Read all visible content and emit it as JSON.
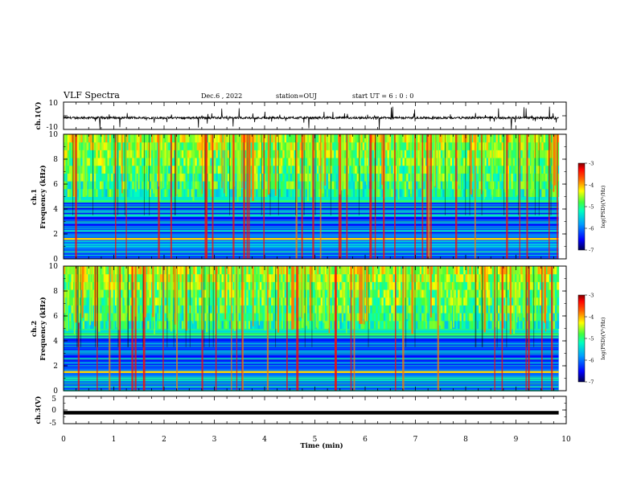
{
  "header": {
    "title": "VLF Spectra",
    "date": "Dec.6 , 2022",
    "station": "station=OUJ",
    "start": "start UT = 6 : 0 : 0"
  },
  "colors": {
    "spectrogram_scale": [
      "#00006e",
      "#0000ff",
      "#0080ff",
      "#00e0ff",
      "#00ff80",
      "#80ff00",
      "#ffff00",
      "#ff8000",
      "#ff0000",
      "#a00000"
    ],
    "waveform": "#000000"
  },
  "chart_data": [
    {
      "type": "line",
      "id": "waveform-ch1",
      "ylabel": "ch.1(V)",
      "ylim": [
        -10,
        10
      ],
      "y_ticks": [
        "10",
        "-10"
      ],
      "xlim": [
        0,
        10
      ],
      "trace_level": -1.5,
      "grid": false
    },
    {
      "type": "heatmap",
      "id": "spectrogram-ch1",
      "ylabel": "ch.1\nFrequency (kHz)",
      "ylim": [
        0,
        10
      ],
      "y_ticks": [
        "0",
        "2",
        "4",
        "6",
        "8",
        "10"
      ],
      "xlim": [
        0,
        9.85
      ],
      "colorbar": {
        "label": "log(PSD)(V²/Hz)",
        "ticks": [
          "-3",
          "-4",
          "-5",
          "-6",
          "-7"
        ],
        "range": [
          -7,
          -3
        ]
      },
      "bands_khz": [
        1.6,
        4.6
      ],
      "grid": false
    },
    {
      "type": "heatmap",
      "id": "spectrogram-ch2",
      "ylabel": "ch.2\nFrequency (kHz)",
      "ylim": [
        0,
        10
      ],
      "y_ticks": [
        "0",
        "2",
        "4",
        "6",
        "8",
        "10"
      ],
      "xlim": [
        0,
        9.85
      ],
      "colorbar": {
        "label": "log(PSD)(V²/Hz)",
        "ticks": [
          "-3",
          "-4",
          "-5",
          "-6",
          "-7"
        ],
        "range": [
          -7,
          -3
        ]
      },
      "bands_khz": [
        1.5,
        4.5
      ],
      "grid": false
    },
    {
      "type": "line",
      "id": "waveform-ch3",
      "ylabel": "ch.3(V)",
      "ylim": [
        -5,
        5
      ],
      "y_ticks": [
        "5",
        "0",
        "-5"
      ],
      "xlim": [
        0,
        10
      ],
      "trace_level": -1.0,
      "grid": false
    }
  ],
  "x_axis": {
    "label": "Time (min)",
    "ticks": [
      "0",
      "1",
      "2",
      "3",
      "4",
      "5",
      "6",
      "7",
      "8",
      "9",
      "10"
    ],
    "range": [
      0,
      10
    ]
  }
}
